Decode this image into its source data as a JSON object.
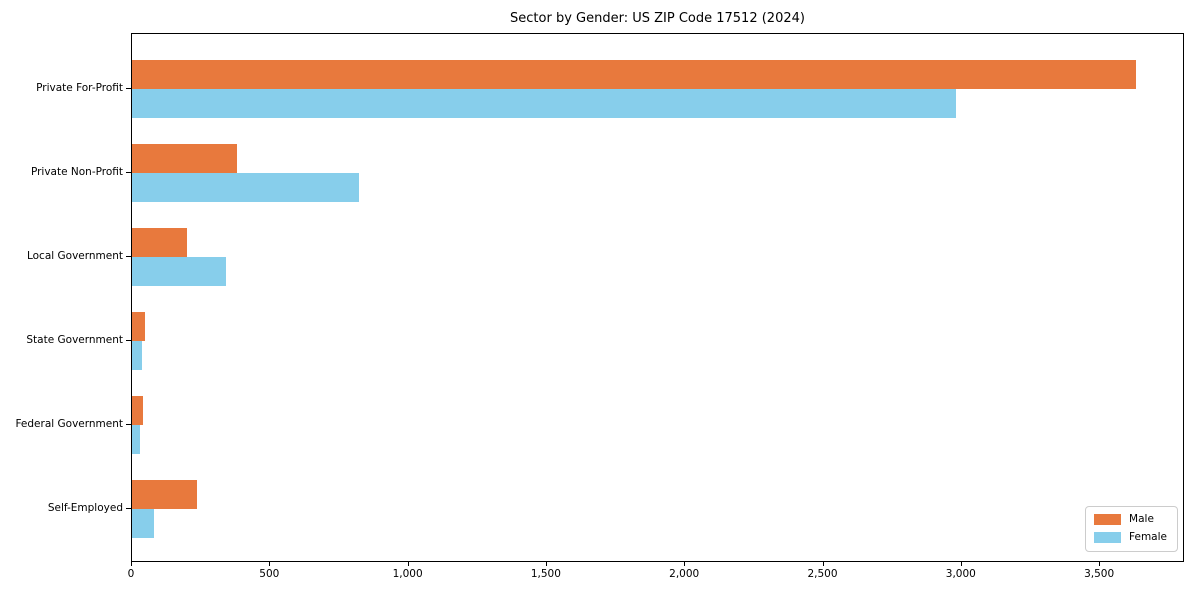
{
  "chart_data": {
    "type": "bar",
    "orientation": "horizontal",
    "title": "Sector by Gender: US ZIP Code 17512 (2024)",
    "categories": [
      "Private For-Profit",
      "Private Non-Profit",
      "Local Government",
      "State Government",
      "Federal Government",
      "Self-Employed"
    ],
    "series": [
      {
        "name": "Male",
        "color": "#e8793d",
        "values": [
          3630,
          380,
          200,
          47,
          40,
          235
        ]
      },
      {
        "name": "Female",
        "color": "#87ceeb",
        "values": [
          2980,
          820,
          340,
          35,
          28,
          80
        ]
      }
    ],
    "xlabel": "",
    "ylabel": "",
    "xlim": [
      0,
      3807
    ],
    "xticks": {
      "values": [
        0,
        500,
        1000,
        1500,
        2000,
        2500,
        3000,
        3500
      ],
      "labels": [
        "0",
        "500",
        "1,000",
        "1,500",
        "2,000",
        "2,500",
        "3,000",
        "3,500"
      ]
    },
    "legend": {
      "position": "lower right",
      "entries": [
        "Male",
        "Female"
      ]
    },
    "grid": false
  },
  "colors": {
    "background": "#ffffff",
    "spine": "#000000",
    "text": "#000000",
    "legend_border": "#cccccc",
    "male": "#e8793d",
    "female": "#87ceeb"
  }
}
